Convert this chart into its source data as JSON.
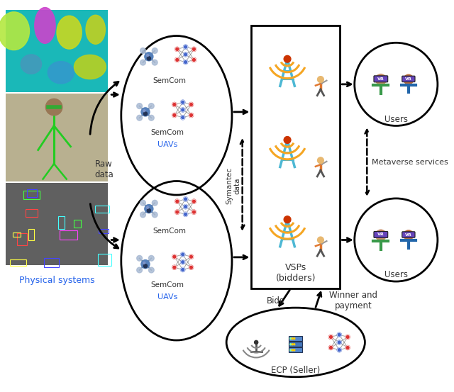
{
  "bg_color": "#ffffff",
  "physical_systems_label": "Physical systems",
  "physical_systems_color": "#2563eb",
  "raw_data_label": "Raw\ndata",
  "symantec_data_label": "Symantec\ndata",
  "vsps_label": "VSPs\n(bidders)",
  "ecp_label": "ECP (Seller)",
  "bids_label": "Bids",
  "winner_label": "Winner and\npayment",
  "metaverse_label": "Metaverse services",
  "users_label": "Users",
  "semcom_label": "SemCom",
  "uavs_label": "UAVs",
  "uavs_color": "#2563eb",
  "tower_color": "#4DB8D4",
  "signal_color": "#F5A623",
  "signal_dot_color": "#cc3300"
}
